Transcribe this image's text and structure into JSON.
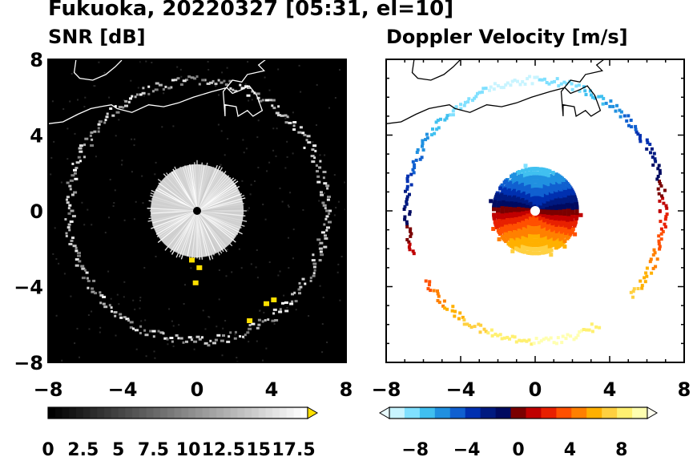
{
  "title": "Fukuoka, 20220327 [05:31, el=10]",
  "chart_data": [
    {
      "type": "heatmap",
      "title": "SNR [dB]",
      "xlim": [
        -8,
        8
      ],
      "ylim": [
        -8,
        8
      ],
      "x_ticks": [
        "−8",
        "−4",
        "0",
        "4",
        "8"
      ],
      "y_ticks": [
        "8",
        "4",
        "0",
        "−4",
        "−8"
      ],
      "colorbar": {
        "min": 0,
        "max": 18.5,
        "extend": "max",
        "tick_labels": [
          "0",
          "2.5",
          "5",
          "7.5",
          "10",
          "12.5",
          "15",
          "17.5"
        ],
        "colors": [
          "#000000",
          "#1a1a1a",
          "#333333",
          "#4d4d4d",
          "#666666",
          "#808080",
          "#999999",
          "#b3b3b3",
          "#cccccc",
          "#e6e6e6",
          "#ffffff"
        ],
        "extend_color": "#ffe000"
      },
      "background": "#000000",
      "features": {
        "ring_radius_km": 6.9,
        "center_blob_radius_km": 2.5
      }
    },
    {
      "type": "heatmap",
      "title": "Doppler Velocity [m/s]",
      "xlim": [
        -8,
        8
      ],
      "ylim": [
        -8,
        8
      ],
      "x_ticks": [
        "−8",
        "−4",
        "0",
        "4",
        "8"
      ],
      "y_ticks": [],
      "colorbar": {
        "min": -10,
        "max": 10,
        "extend": "both",
        "tick_labels": [
          "−8",
          "−4",
          "0",
          "4",
          "8"
        ],
        "colors": [
          "#c8f4ff",
          "#80e0ff",
          "#40c0f0",
          "#2090e0",
          "#1060d0",
          "#0030b0",
          "#001a80",
          "#000a60",
          "#7a0000",
          "#c00000",
          "#e82000",
          "#ff5000",
          "#ff8000",
          "#ffb000",
          "#ffd040",
          "#fff070",
          "#ffffb0"
        ]
      },
      "background": "#ffffff",
      "features": {
        "ring_radius_km": 6.9,
        "center_blob_radius_km": 2.3
      }
    }
  ]
}
